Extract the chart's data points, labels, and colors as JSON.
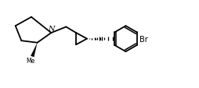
{
  "bg_color": "#ffffff",
  "line_color": "#000000",
  "line_width": 1.3,
  "figsize": [
    2.55,
    1.14
  ],
  "dpi": 100,
  "N_label": "N",
  "Br_label": "Br",
  "font_size_N": 7,
  "font_size_Br": 7
}
